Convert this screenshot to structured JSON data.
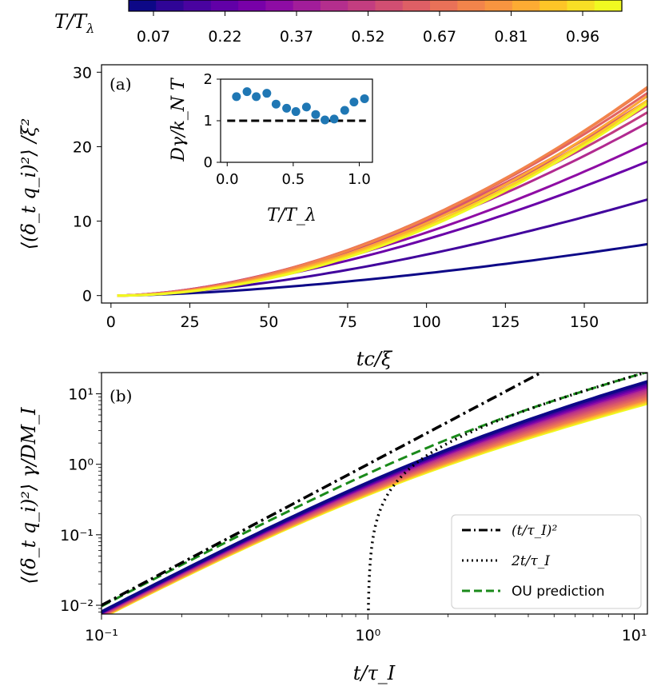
{
  "colorbar": {
    "label": "T/T_λ",
    "label_parts": {
      "main": "T/T",
      "sub": "λ"
    },
    "ticks": [
      "0.07",
      "0.22",
      "0.37",
      "0.52",
      "0.67",
      "0.81",
      "0.96"
    ],
    "colors": [
      "#0d0887",
      "#2f0596",
      "#4903a0",
      "#6100a7",
      "#7801a8",
      "#8e0ca4",
      "#a21d9a",
      "#b42e8d",
      "#c33d80",
      "#d14e72",
      "#de5f65",
      "#e97158",
      "#f2844b",
      "#f89540",
      "#fdab33",
      "#fdc527",
      "#f8df25",
      "#f0f921"
    ]
  },
  "chart_data": [
    {
      "id": "a",
      "type": "line",
      "panel_label": "(a)",
      "xlabel": "tc/ξ",
      "ylabel": "⟨(δ_t q_i)²⟩ /ξ²",
      "xlim": [
        -3,
        170
      ],
      "ylim": [
        -1,
        31
      ],
      "xticks": [
        0,
        25,
        50,
        75,
        100,
        125,
        150
      ],
      "xtick_labels": [
        "0",
        "25",
        "50",
        "75",
        "100",
        "125",
        "150"
      ],
      "yticks": [
        0,
        10,
        20,
        30
      ],
      "ytick_labels": [
        "0",
        "10",
        "20",
        "30"
      ],
      "series": [
        {
          "name": "T/Tλ=0.07",
          "color": "#0d0887",
          "end_value": 6.9
        },
        {
          "name": "T/Tλ=0.15",
          "color": "#41049d",
          "end_value": 12.9
        },
        {
          "name": "T/Tλ=0.22",
          "color": "#6a00a8",
          "end_value": 18.0
        },
        {
          "name": "T/Tλ=0.30",
          "color": "#8f0da4",
          "end_value": 20.5
        },
        {
          "name": "T/Tλ=0.37",
          "color": "#b12a90",
          "end_value": 23.2
        },
        {
          "name": "T/Tλ=0.45",
          "color": "#c13b82",
          "end_value": 24.6
        },
        {
          "name": "T/Tλ=0.52",
          "color": "#cc4778",
          "end_value": 25.5
        },
        {
          "name": "T/Tλ=0.60",
          "color": "#d8576b",
          "end_value": 26.2
        },
        {
          "name": "T/Tλ=0.67",
          "color": "#e16462",
          "end_value": 27.2
        },
        {
          "name": "T/Tλ=0.74",
          "color": "#eb7655",
          "end_value": 27.8
        },
        {
          "name": "T/Tλ=0.81",
          "color": "#f2844b",
          "end_value": 28.0
        },
        {
          "name": "T/Tλ=0.89",
          "color": "#fca636",
          "end_value": 26.8
        },
        {
          "name": "T/Tλ=0.96",
          "color": "#fccd25",
          "end_value": 26.2
        },
        {
          "name": "T/Tλ=1.04",
          "color": "#f0f921",
          "end_value": 25.8
        }
      ],
      "inset": {
        "type": "scatter",
        "xlabel": "T/T_λ",
        "ylabel": "Dγ/k_N T",
        "xlim": [
          -0.05,
          1.1
        ],
        "ylim": [
          0,
          2
        ],
        "xticks": [
          0,
          0.5,
          1
        ],
        "xtick_labels": [
          "0.0",
          "0.5",
          "1.0"
        ],
        "yticks": [
          0,
          1,
          2
        ],
        "ytick_labels": [
          "0",
          "1",
          "2"
        ],
        "reference_line": 1.0,
        "x": [
          0.07,
          0.15,
          0.22,
          0.3,
          0.37,
          0.45,
          0.52,
          0.6,
          0.67,
          0.74,
          0.81,
          0.89,
          0.96,
          1.04
        ],
        "y": [
          1.58,
          1.7,
          1.58,
          1.66,
          1.4,
          1.3,
          1.22,
          1.33,
          1.15,
          1.02,
          1.04,
          1.25,
          1.45,
          1.53
        ],
        "color": "#1f77b4"
      }
    },
    {
      "id": "b",
      "type": "line",
      "scale": "log-log",
      "panel_label": "(b)",
      "xlabel": "t/τ_I",
      "ylabel": "⟨(δ_t q_i)²⟩ γ/DM_I",
      "xlim": [
        0.1,
        11.2
      ],
      "ylim": [
        0.0075,
        20
      ],
      "xticks": [
        0.1,
        1,
        10
      ],
      "xtick_labels": [
        "10⁻¹",
        "10⁰",
        "10¹"
      ],
      "yticks": [
        0.01,
        0.1,
        1,
        10
      ],
      "ytick_labels": [
        "10⁻²",
        "10⁻¹",
        "10⁰",
        "10¹"
      ],
      "legend": {
        "location": "lower right",
        "entries": [
          {
            "label": "(t/τ_I)²",
            "style": "dashdot",
            "color": "#000000"
          },
          {
            "label": "2t/τ_I",
            "style": "dotted",
            "color": "#000000"
          },
          {
            "label": "OU prediction",
            "style": "dashed",
            "color": "#1a8a1a"
          }
        ]
      }
    }
  ]
}
